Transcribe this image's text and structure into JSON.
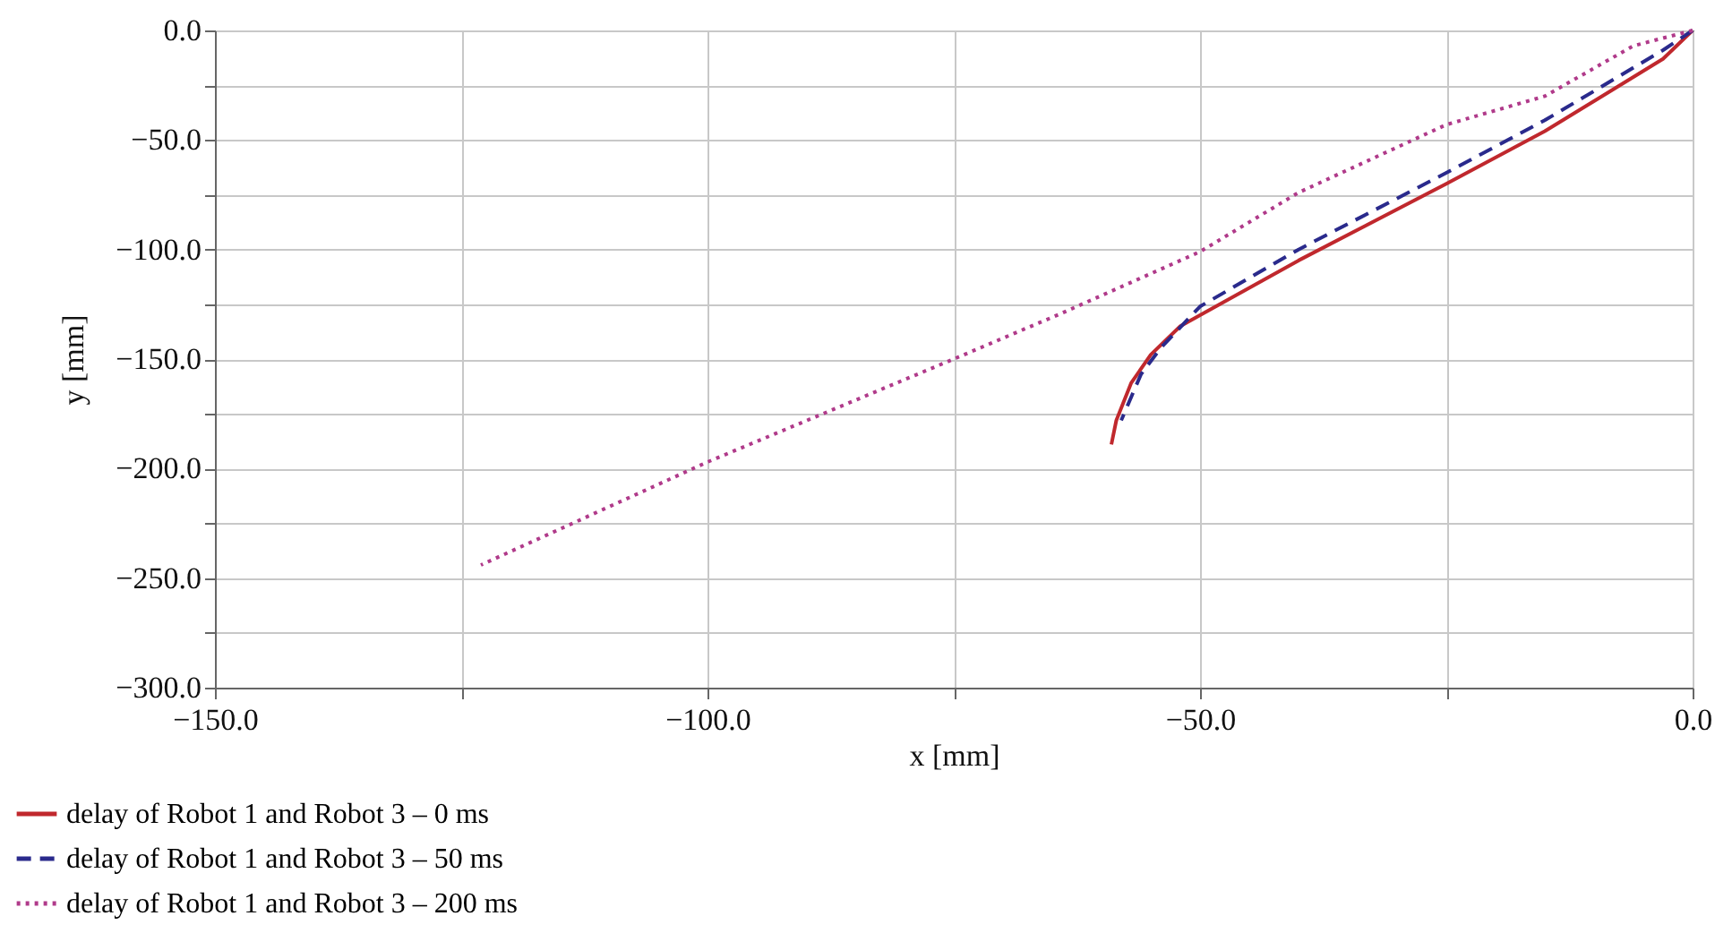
{
  "chart_data": {
    "type": "line",
    "xlabel": "x [mm]",
    "ylabel": "y [mm]",
    "xlim": [
      -150,
      0
    ],
    "ylim": [
      -300,
      0
    ],
    "xticks": [
      {
        "value": -150,
        "label": "−150.0"
      },
      {
        "value": -125,
        "label": null
      },
      {
        "value": -100,
        "label": "−100.0"
      },
      {
        "value": -75,
        "label": null
      },
      {
        "value": -50,
        "label": "−50.0"
      },
      {
        "value": -25,
        "label": null
      },
      {
        "value": 0,
        "label": "0.0"
      }
    ],
    "yticks": [
      {
        "value": -300,
        "label": "−300.0"
      },
      {
        "value": -275,
        "label": null
      },
      {
        "value": -250,
        "label": "−250.0"
      },
      {
        "value": -225,
        "label": null
      },
      {
        "value": -200,
        "label": "−200.0"
      },
      {
        "value": -175,
        "label": null
      },
      {
        "value": -150,
        "label": "−150.0"
      },
      {
        "value": -125,
        "label": null
      },
      {
        "value": -100,
        "label": "−100.0"
      },
      {
        "value": -75,
        "label": null
      },
      {
        "value": -50,
        "label": "−50.0"
      },
      {
        "value": -25,
        "label": null
      },
      {
        "value": 0,
        "label": "0.0"
      }
    ],
    "grid": true,
    "legend": "bottom",
    "marker": "none",
    "series": [
      {
        "name": "delay of Robot 1 and Robot 3 – 0 ms",
        "color": "#c0282d",
        "line_style": "solid",
        "x": [
          0,
          -3,
          -15,
          -25,
          -40,
          -50,
          -52,
          -55,
          -57,
          -58.5,
          -59
        ],
        "values": [
          0,
          -13,
          -46,
          -70,
          -105,
          -130,
          -135,
          -148,
          -161,
          -178,
          -189
        ]
      },
      {
        "name": "delay of Robot 1 and Robot 3 – 50 ms",
        "color": "#2a2a8c",
        "line_style": "dashed",
        "x": [
          0,
          -3,
          -15,
          -25,
          -40,
          -50,
          -54,
          -56,
          -58
        ],
        "values": [
          0,
          -9,
          -41,
          -65,
          -100,
          -126,
          -145,
          -157,
          -178
        ]
      },
      {
        "name": "delay of Robot 1 and Robot 3 – 200 ms",
        "color": "#b03a8a",
        "line_style": "dotted",
        "x": [
          0,
          -6,
          -15,
          -25,
          -40,
          -50,
          -64,
          -75,
          -100,
          -123
        ],
        "values": [
          0,
          -7,
          -30,
          -43,
          -74,
          -101,
          -129,
          -150,
          -197,
          -244
        ]
      }
    ]
  }
}
